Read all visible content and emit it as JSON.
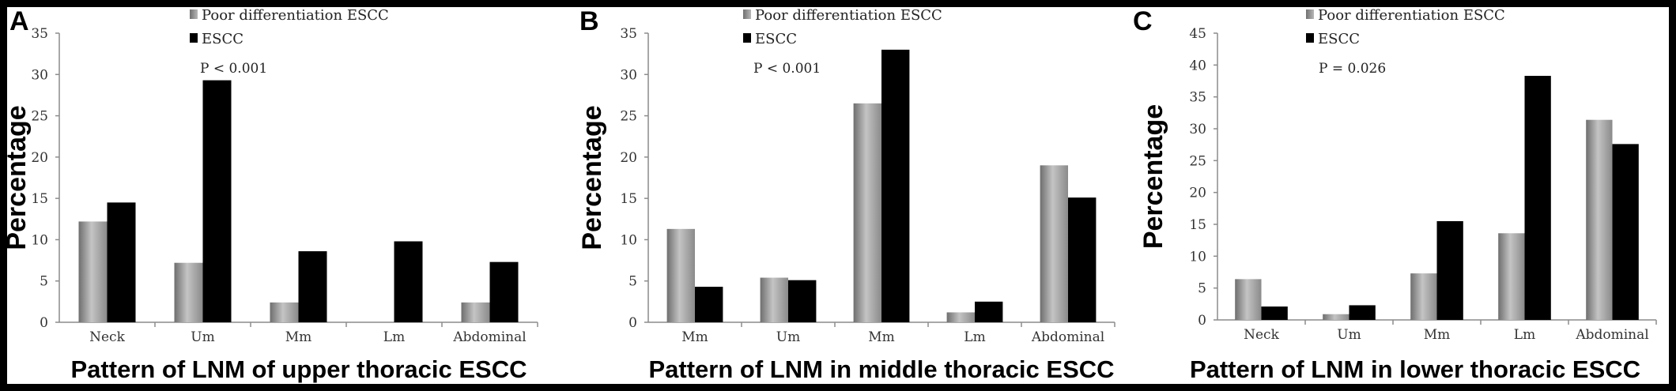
{
  "chart_data": [
    {
      "panel": "A",
      "type": "bar",
      "xlabel": "Pattern of LNM of upper thoracic ESCC",
      "ylabel": "Percentage",
      "ylim": [
        0,
        35
      ],
      "yticks": [
        0,
        5,
        10,
        15,
        20,
        25,
        30,
        35
      ],
      "categories": [
        "Neck",
        "Um",
        "Mm",
        "Lm",
        "Abdominal"
      ],
      "series": [
        {
          "name": "Poor differentiation ESCC",
          "color": "#8a8a8a",
          "values": [
            12.2,
            7.2,
            2.4,
            0,
            2.4
          ]
        },
        {
          "name": "ESCC",
          "color": "#000000",
          "values": [
            14.5,
            29.3,
            8.6,
            9.8,
            7.3
          ]
        }
      ],
      "annotation": "P < 0.001",
      "legend": "top-center",
      "grid": false
    },
    {
      "panel": "B",
      "type": "bar",
      "xlabel": "Pattern of LNM in middle thoracic ESCC",
      "ylabel": "Percentage",
      "ylim": [
        0,
        35
      ],
      "yticks": [
        0,
        5,
        10,
        15,
        20,
        25,
        30,
        35
      ],
      "categories": [
        "Mm",
        "Um",
        "Mm",
        "Lm",
        "Abdominal"
      ],
      "series": [
        {
          "name": "Poor differentiation ESCC",
          "color": "#8a8a8a",
          "values": [
            11.3,
            5.4,
            26.5,
            1.2,
            19.0
          ]
        },
        {
          "name": "ESCC",
          "color": "#000000",
          "values": [
            4.3,
            5.1,
            33.0,
            2.5,
            15.1
          ]
        }
      ],
      "annotation": "P < 0.001",
      "legend": "top-center",
      "grid": false
    },
    {
      "panel": "C",
      "type": "bar",
      "xlabel": "Pattern of LNM in lower thoracic ESCC",
      "ylabel": "Percentage",
      "ylim": [
        0,
        45
      ],
      "yticks": [
        0,
        5,
        10,
        15,
        20,
        25,
        30,
        35,
        40,
        45
      ],
      "categories": [
        "Neck",
        "Um",
        "Mm",
        "Lm",
        "Abdominal"
      ],
      "series": [
        {
          "name": "Poor differentiation ESCC",
          "color": "#8a8a8a",
          "values": [
            6.4,
            0.9,
            7.3,
            13.6,
            31.4
          ]
        },
        {
          "name": "ESCC",
          "color": "#000000",
          "values": [
            2.1,
            2.3,
            15.5,
            38.3,
            27.6
          ]
        }
      ],
      "annotation": "P = 0.026",
      "legend": "top-center",
      "grid": false
    }
  ]
}
